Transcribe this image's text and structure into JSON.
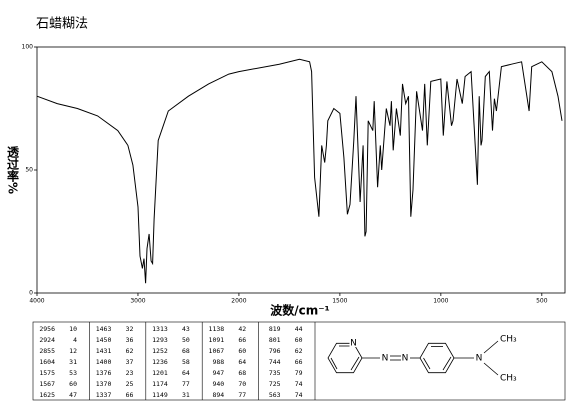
{
  "chart_data": {
    "type": "line",
    "title": "石蜡糊法",
    "x_label": "波数/cm⁻¹",
    "y_label": "透过率%",
    "xlim": [
      4000,
      400
    ],
    "x_scale_break": 2000,
    "xticks": [
      4000,
      3000,
      2000,
      1500,
      1000,
      500
    ],
    "ylim": [
      0,
      100
    ],
    "yticks": [
      0,
      50,
      100
    ],
    "color": "#000000",
    "series": [
      {
        "name": null,
        "color": "#000000",
        "x": [
          4000,
          3800,
          3600,
          3400,
          3200,
          3100,
          3050,
          3000,
          2980,
          2956,
          2940,
          2924,
          2910,
          2890,
          2870,
          2855,
          2840,
          2800,
          2700,
          2500,
          2300,
          2100,
          2000,
          1800,
          1700,
          1650,
          1640,
          1625,
          1604,
          1590,
          1575,
          1567,
          1560,
          1530,
          1500,
          1480,
          1463,
          1450,
          1431,
          1420,
          1400,
          1385,
          1376,
          1370,
          1360,
          1337,
          1330,
          1313,
          1300,
          1293,
          1270,
          1252,
          1245,
          1236,
          1220,
          1201,
          1190,
          1174,
          1160,
          1149,
          1138,
          1120,
          1091,
          1080,
          1067,
          1050,
          1000,
          988,
          970,
          947,
          940,
          920,
          894,
          880,
          850,
          819,
          810,
          801,
          796,
          780,
          760,
          744,
          735,
          725,
          700,
          650,
          600,
          563,
          550,
          500,
          450,
          420,
          400
        ],
        "values": [
          80,
          77,
          75,
          72,
          66,
          60,
          52,
          35,
          15,
          10,
          14,
          4,
          18,
          24,
          13,
          12,
          30,
          62,
          74,
          80,
          85,
          89,
          90,
          93,
          95,
          94,
          90,
          47,
          31,
          60,
          53,
          60,
          70,
          75,
          73,
          55,
          32,
          36,
          62,
          80,
          37,
          60,
          23,
          25,
          70,
          66,
          78,
          43,
          60,
          50,
          75,
          68,
          78,
          58,
          75,
          64,
          85,
          77,
          80,
          31,
          42,
          82,
          66,
          85,
          60,
          86,
          87,
          64,
          86,
          68,
          70,
          87,
          77,
          88,
          90,
          44,
          80,
          60,
          62,
          88,
          90,
          66,
          79,
          74,
          92,
          93,
          94,
          74,
          92,
          94,
          90,
          80,
          70
        ]
      }
    ]
  },
  "table": {
    "rows": [
      [
        2956,
        10,
        1463,
        32,
        1313,
        43,
        1138,
        42,
        819,
        44
      ],
      [
        2924,
        4,
        1450,
        36,
        1293,
        50,
        1091,
        66,
        801,
        60
      ],
      [
        2855,
        12,
        1431,
        62,
        1252,
        68,
        1067,
        60,
        796,
        62
      ],
      [
        1604,
        31,
        1400,
        37,
        1236,
        58,
        988,
        64,
        744,
        66
      ],
      [
        1575,
        53,
        1376,
        23,
        1201,
        64,
        947,
        68,
        735,
        79
      ],
      [
        1567,
        60,
        1370,
        25,
        1174,
        77,
        940,
        70,
        725,
        74
      ],
      [
        1625,
        47,
        1337,
        66,
        1149,
        31,
        894,
        77,
        563,
        74
      ]
    ]
  },
  "structure": {
    "atoms": [
      "N",
      "N",
      "N",
      "N",
      "CH₃",
      "CH₃"
    ]
  }
}
